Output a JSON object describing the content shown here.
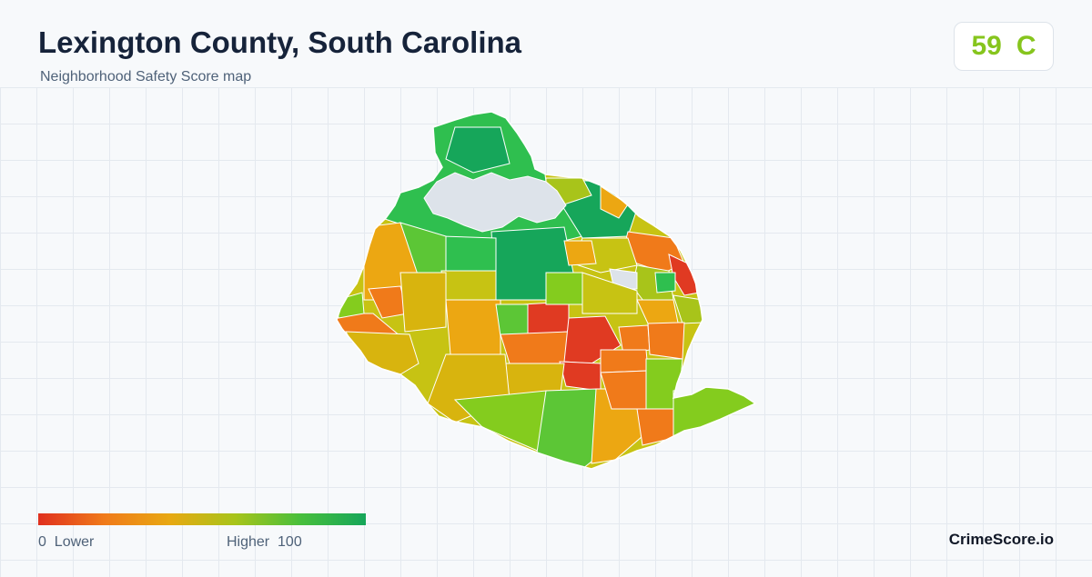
{
  "header": {
    "title": "Lexington County, South Carolina",
    "subtitle": "Neighborhood Safety Score map"
  },
  "score": {
    "value": "59",
    "grade": "C",
    "color": "#86c51d"
  },
  "legend": {
    "low_value": "0",
    "low_label": "Lower",
    "high_label": "Higher",
    "high_value": "100",
    "gradient": [
      "#e0301e",
      "#f07a1a",
      "#e8a812",
      "#a8c41a",
      "#48bf3c",
      "#16a65a"
    ]
  },
  "brand": "CrimeScore.io",
  "map": {
    "palette": {
      "red": "#e03a22",
      "red_orange": "#ec5a1e",
      "orange": "#f07a1a",
      "amber": "#eca712",
      "gold": "#d8b40e",
      "olive": "#c7c313",
      "yellow_green": "#a8c41a",
      "lime": "#84cc1e",
      "light_green": "#5cc636",
      "green": "#2fbf4f",
      "dark_green": "#16a65a",
      "water": "#dde3ea"
    }
  }
}
